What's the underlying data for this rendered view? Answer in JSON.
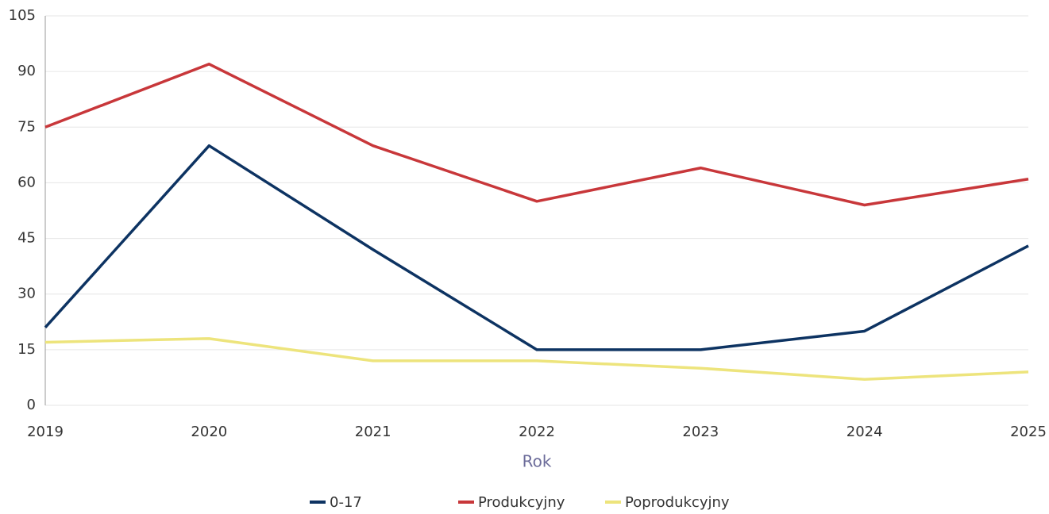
{
  "chart_data": {
    "type": "line",
    "x": [
      2019,
      2020,
      2021,
      2022,
      2023,
      2024,
      2025
    ],
    "xlim": [
      2019,
      2025
    ],
    "xticks": [
      2019,
      2020,
      2021,
      2022,
      2023,
      2024,
      2025
    ],
    "ylim": [
      0,
      105
    ],
    "yticks": [
      0,
      15,
      30,
      45,
      60,
      75,
      90,
      105
    ],
    "xlabel": "Rok",
    "grid": true,
    "legend": "bottom",
    "series": [
      {
        "name": "0-17",
        "color": "#0d3362",
        "values": [
          21,
          70,
          42,
          15,
          15,
          20,
          43
        ]
      },
      {
        "name": "Produkcyjny",
        "color": "#c8373a",
        "values": [
          75,
          92,
          70,
          55,
          64,
          54,
          61
        ]
      },
      {
        "name": "Poprodukcyjny",
        "color": "#ede47c",
        "values": [
          17,
          18,
          12,
          12,
          10,
          7,
          9
        ]
      }
    ]
  }
}
